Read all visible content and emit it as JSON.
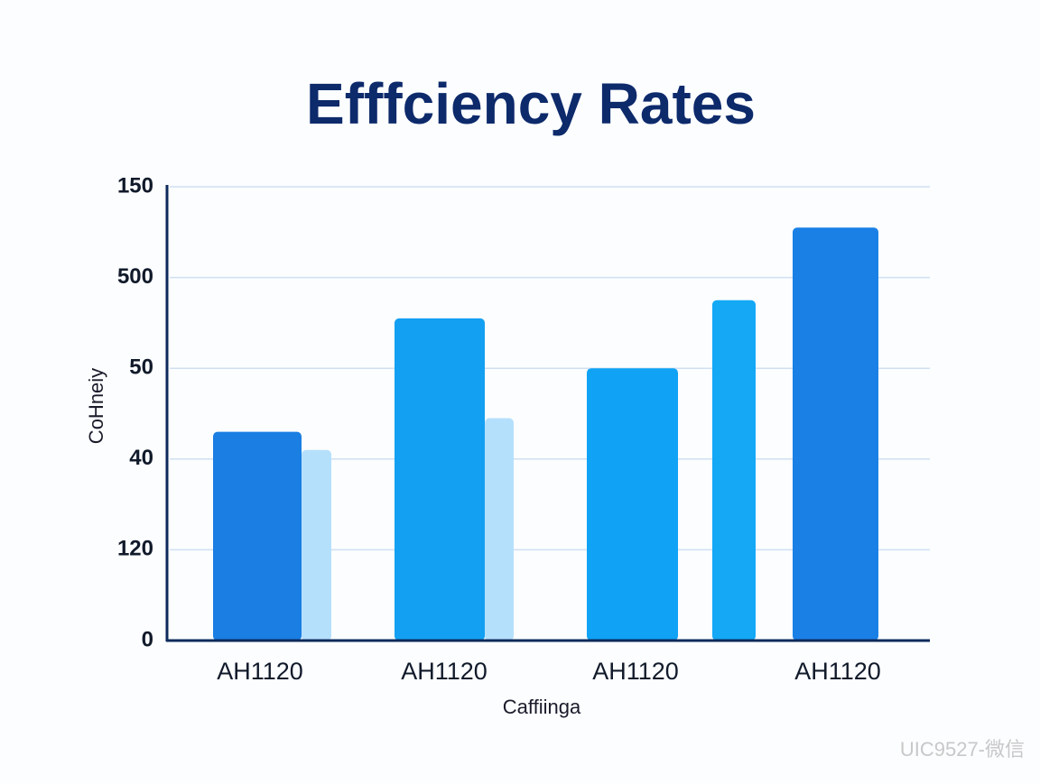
{
  "chart_data": {
    "type": "bar",
    "title": "Efffciency Rates",
    "x_label": "Caffiinga",
    "y_label": "CoHneiy",
    "categories": [
      "AH1120",
      "AH1120",
      "AH1120",
      "AH1120"
    ],
    "series": [
      {
        "colors": [
          "#1a7ee3",
          "#14a0f2",
          "#0fa2f5",
          "#1a80e6"
        ],
        "values": [
          2.3,
          3.55,
          3.0,
          4.55
        ]
      },
      {
        "colors": [
          "#b5e0fc",
          "#b5e0fc",
          "#14a8f5",
          null
        ],
        "values": [
          2.1,
          2.45,
          3.75,
          null
        ]
      }
    ],
    "ylim": [
      0,
      5
    ],
    "yticks": [
      {
        "value": 0,
        "label": "0"
      },
      {
        "value": 1,
        "label": "120"
      },
      {
        "value": 2,
        "label": "40"
      },
      {
        "value": 3,
        "label": "50"
      },
      {
        "value": 4,
        "label": "500"
      },
      {
        "value": 5,
        "label": "150"
      }
    ],
    "grid": true
  },
  "watermark": "UIC9527-微信"
}
